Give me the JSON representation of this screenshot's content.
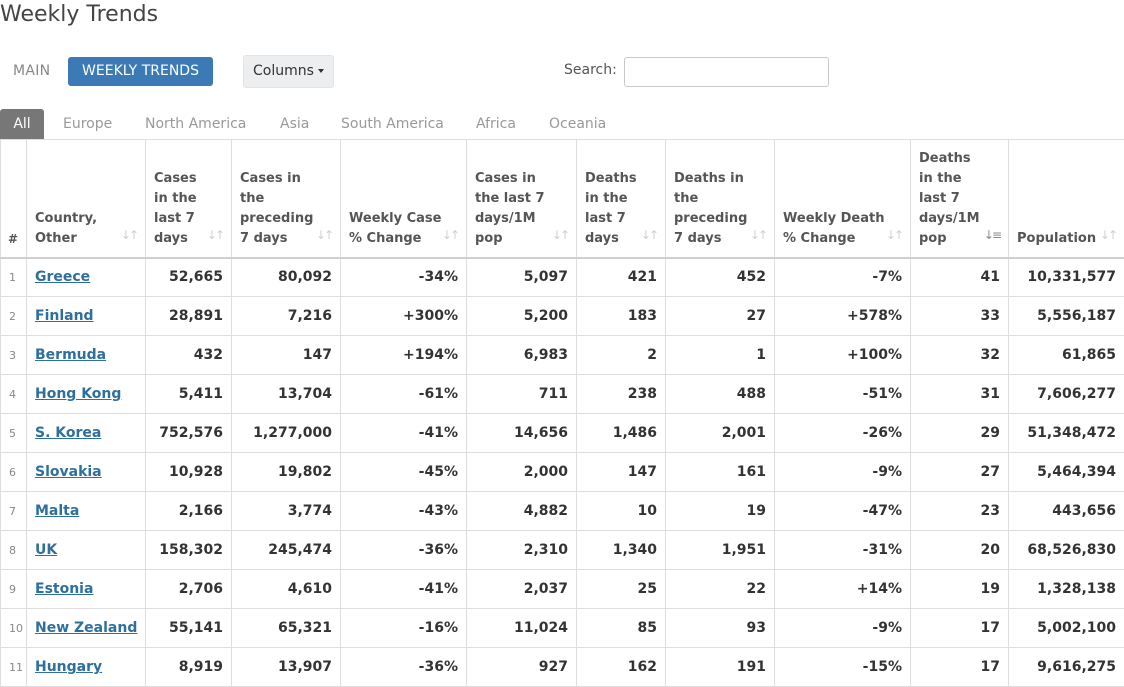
{
  "page": {
    "title": "Weekly Trends"
  },
  "nav": {
    "main_label": "MAIN",
    "weekly_label": "WEEKLY TRENDS",
    "columns_label": "Columns"
  },
  "search": {
    "label": "Search:",
    "value": "",
    "placeholder": ""
  },
  "tabs": [
    "All",
    "Europe",
    "North America",
    "Asia",
    "South America",
    "Africa",
    "Oceania"
  ],
  "table": {
    "headers": [
      "#",
      "Country, Other",
      "Cases in the last 7 days",
      "Cases in the preceding 7 days",
      "Weekly Case % Change",
      "Cases in the last 7 days/1M pop",
      "Deaths in the last 7 days",
      "Deaths in the preceding 7 days",
      "Weekly Death % Change",
      "Deaths in the last 7 days/1M pop",
      "Population"
    ],
    "rows": [
      [
        "1",
        "Greece",
        "52,665",
        "80,092",
        "-34%",
        "5,097",
        "421",
        "452",
        "-7%",
        "41",
        "10,331,577"
      ],
      [
        "2",
        "Finland",
        "28,891",
        "7,216",
        "+300%",
        "5,200",
        "183",
        "27",
        "+578%",
        "33",
        "5,556,187"
      ],
      [
        "3",
        "Bermuda",
        "432",
        "147",
        "+194%",
        "6,983",
        "2",
        "1",
        "+100%",
        "32",
        "61,865"
      ],
      [
        "4",
        "Hong Kong",
        "5,411",
        "13,704",
        "-61%",
        "711",
        "238",
        "488",
        "-51%",
        "31",
        "7,606,277"
      ],
      [
        "5",
        "S. Korea",
        "752,576",
        "1,277,000",
        "-41%",
        "14,656",
        "1,486",
        "2,001",
        "-26%",
        "29",
        "51,348,472"
      ],
      [
        "6",
        "Slovakia",
        "10,928",
        "19,802",
        "-45%",
        "2,000",
        "147",
        "161",
        "-9%",
        "27",
        "5,464,394"
      ],
      [
        "7",
        "Malta",
        "2,166",
        "3,774",
        "-43%",
        "4,882",
        "10",
        "19",
        "-47%",
        "23",
        "443,656"
      ],
      [
        "8",
        "UK",
        "158,302",
        "245,474",
        "-36%",
        "2,310",
        "1,340",
        "1,951",
        "-31%",
        "20",
        "68,526,830"
      ],
      [
        "9",
        "Estonia",
        "2,706",
        "4,610",
        "-41%",
        "2,037",
        "25",
        "22",
        "+14%",
        "19",
        "1,328,138"
      ],
      [
        "10",
        "New Zealand",
        "55,141",
        "65,321",
        "-16%",
        "11,024",
        "85",
        "93",
        "-9%",
        "17",
        "5,002,100"
      ],
      [
        "11",
        "Hungary",
        "8,919",
        "13,907",
        "-36%",
        "927",
        "162",
        "191",
        "-15%",
        "17",
        "9,616,275"
      ]
    ]
  },
  "colors": {
    "accent": "#3c7ab5",
    "tab_active": "#777777",
    "link": "#2e6f9e"
  },
  "icons": {
    "sort": "sort-arrows-icon",
    "sort_active": "sort-desc-icon",
    "caret": "caret-down-icon"
  }
}
